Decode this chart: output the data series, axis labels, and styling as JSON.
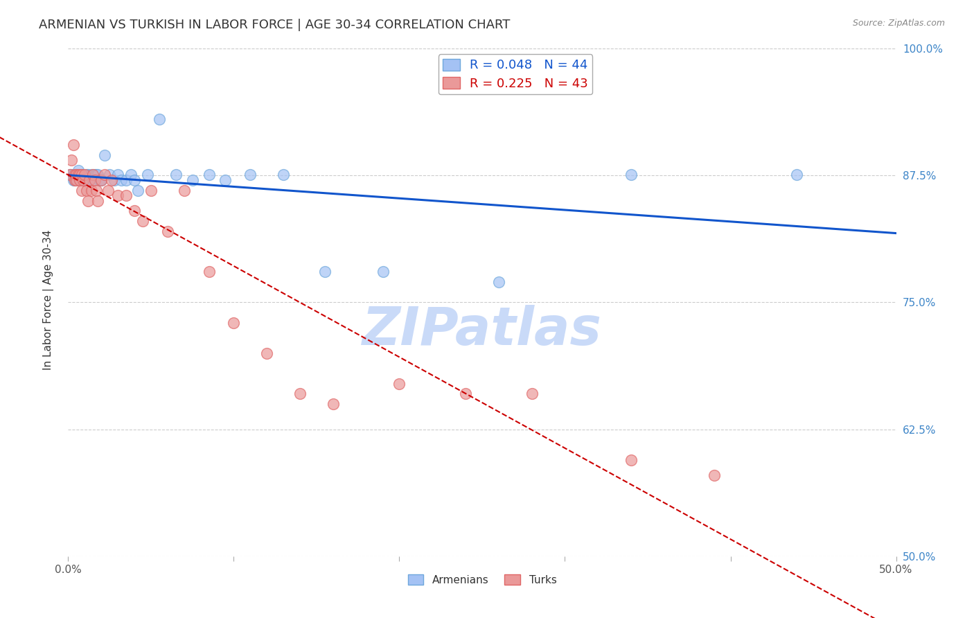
{
  "title": "ARMENIAN VS TURKISH IN LABOR FORCE | AGE 30-34 CORRELATION CHART",
  "source": "Source: ZipAtlas.com",
  "ylabel": "In Labor Force | Age 30-34",
  "xlim": [
    0.0,
    0.5
  ],
  "ylim": [
    0.5,
    1.005
  ],
  "x_ticks": [
    0.0,
    0.1,
    0.2,
    0.3,
    0.4,
    0.5
  ],
  "x_tick_labels": [
    "0.0%",
    "",
    "",
    "",
    "",
    "50.0%"
  ],
  "y_ticks": [
    0.5,
    0.625,
    0.75,
    0.875,
    1.0
  ],
  "y_tick_labels": [
    "50.0%",
    "62.5%",
    "75.0%",
    "87.5%",
    "100.0%"
  ],
  "armenian_x": [
    0.001,
    0.002,
    0.003,
    0.003,
    0.004,
    0.005,
    0.006,
    0.007,
    0.008,
    0.008,
    0.009,
    0.01,
    0.011,
    0.012,
    0.013,
    0.014,
    0.015,
    0.016,
    0.017,
    0.018,
    0.019,
    0.02,
    0.022,
    0.025,
    0.028,
    0.03,
    0.032,
    0.035,
    0.038,
    0.04,
    0.042,
    0.048,
    0.055,
    0.065,
    0.075,
    0.085,
    0.095,
    0.11,
    0.13,
    0.155,
    0.19,
    0.26,
    0.34,
    0.44
  ],
  "armenian_y": [
    0.876,
    0.876,
    0.87,
    0.876,
    0.87,
    0.876,
    0.88,
    0.87,
    0.876,
    0.87,
    0.876,
    0.87,
    0.876,
    0.876,
    0.87,
    0.876,
    0.87,
    0.876,
    0.876,
    0.876,
    0.87,
    0.87,
    0.895,
    0.876,
    0.87,
    0.876,
    0.87,
    0.87,
    0.876,
    0.87,
    0.86,
    0.876,
    0.93,
    0.876,
    0.87,
    0.876,
    0.87,
    0.876,
    0.876,
    0.78,
    0.78,
    0.77,
    0.876,
    0.876
  ],
  "turkish_x": [
    0.001,
    0.002,
    0.003,
    0.004,
    0.004,
    0.005,
    0.005,
    0.006,
    0.007,
    0.007,
    0.008,
    0.008,
    0.009,
    0.01,
    0.011,
    0.012,
    0.013,
    0.014,
    0.015,
    0.016,
    0.017,
    0.018,
    0.02,
    0.022,
    0.024,
    0.026,
    0.03,
    0.035,
    0.04,
    0.045,
    0.05,
    0.06,
    0.07,
    0.085,
    0.1,
    0.12,
    0.14,
    0.16,
    0.2,
    0.24,
    0.28,
    0.34,
    0.39
  ],
  "turkish_y": [
    0.876,
    0.89,
    0.905,
    0.876,
    0.87,
    0.876,
    0.87,
    0.876,
    0.87,
    0.876,
    0.86,
    0.876,
    0.87,
    0.876,
    0.86,
    0.85,
    0.87,
    0.86,
    0.876,
    0.87,
    0.86,
    0.85,
    0.87,
    0.876,
    0.86,
    0.87,
    0.855,
    0.855,
    0.84,
    0.83,
    0.86,
    0.82,
    0.86,
    0.78,
    0.73,
    0.7,
    0.66,
    0.65,
    0.67,
    0.66,
    0.66,
    0.595,
    0.58
  ],
  "blue_marker_color": "#a4c2f4",
  "blue_edge_color": "#6fa8dc",
  "pink_marker_color": "#ea9999",
  "pink_edge_color": "#e06666",
  "trend_blue_color": "#1155cc",
  "trend_pink_color": "#cc0000",
  "watermark_text": "ZIPatlas",
  "watermark_color": "#c9daf8",
  "background_color": "#ffffff",
  "grid_color": "#cccccc",
  "right_tick_color": "#3d85c8",
  "title_color": "#333333",
  "source_color": "#888888"
}
